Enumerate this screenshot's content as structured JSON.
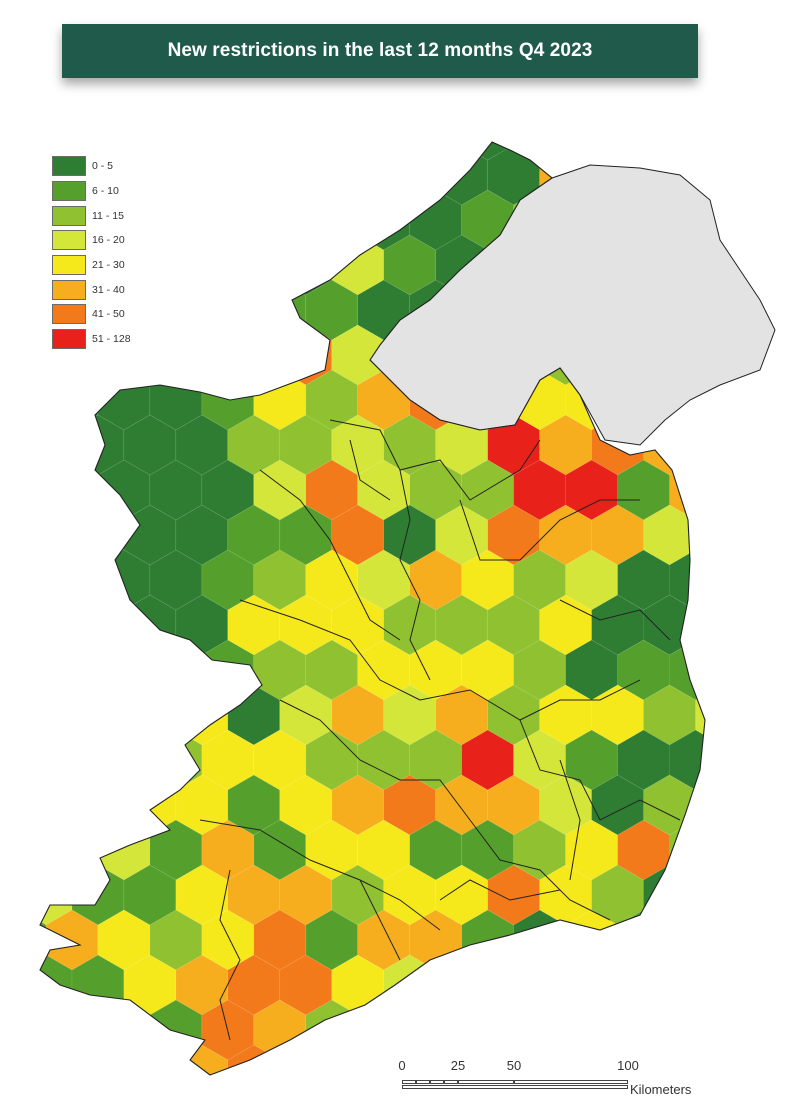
{
  "title": "New restrictions in the last 12 months Q4 2023",
  "legend": {
    "items": [
      {
        "label": "0 - 5",
        "color": "#2e7d32"
      },
      {
        "label": "6 - 10",
        "color": "#55a02c"
      },
      {
        "label": "11 - 15",
        "color": "#8fc131"
      },
      {
        "label": "16 - 20",
        "color": "#d4e63a"
      },
      {
        "label": "21 - 30",
        "color": "#f5e91c"
      },
      {
        "label": "31 - 40",
        "color": "#f7ae1e"
      },
      {
        "label": "41 - 50",
        "color": "#f27a1a"
      },
      {
        "label": "51 - 128",
        "color": "#e8211b"
      }
    ]
  },
  "map": {
    "land_outside_color": "#e3e3e3",
    "boundary_color": "#222222"
  },
  "scale_bar": {
    "ticks": [
      "0",
      "25",
      "50",
      "100"
    ],
    "unit": "Kilometers"
  }
}
